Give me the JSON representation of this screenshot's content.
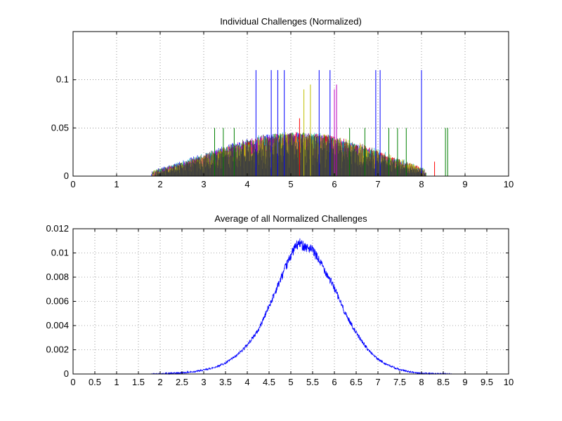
{
  "figure": {
    "background": "#ffffff"
  },
  "chart_data": [
    {
      "type": "area",
      "title": "Individual Challenges (Normalized)",
      "xlabel": "",
      "ylabel": "",
      "xlim": [
        0,
        10
      ],
      "ylim": [
        0,
        0.15
      ],
      "xticks": [
        0,
        1,
        2,
        3,
        4,
        5,
        6,
        7,
        8,
        9,
        10
      ],
      "xtick_labels": [
        "0",
        "1",
        "2",
        "3",
        "4",
        "5",
        "6",
        "7",
        "8",
        "9",
        "10"
      ],
      "yticks": [
        0,
        0.05,
        0.1
      ],
      "ytick_labels": [
        "0",
        "0.05",
        "0.1"
      ],
      "grid": true,
      "series_colors": [
        "#0000ff",
        "#008000",
        "#ff0000",
        "#00bfbf",
        "#bf00bf",
        "#bfbf00",
        "#404040"
      ],
      "envelope": {
        "x": [
          1.8,
          2.0,
          2.5,
          3.0,
          3.5,
          4.0,
          4.5,
          5.0,
          5.5,
          6.0,
          6.5,
          7.0,
          7.5,
          8.0,
          8.2
        ],
        "y": [
          0.002,
          0.006,
          0.013,
          0.021,
          0.029,
          0.037,
          0.043,
          0.046,
          0.045,
          0.042,
          0.035,
          0.026,
          0.017,
          0.008,
          0.003
        ]
      },
      "spikes": [
        {
          "x": 4.2,
          "y": 0.11,
          "color": "#0000ff"
        },
        {
          "x": 4.55,
          "y": 0.11,
          "color": "#0000ff"
        },
        {
          "x": 4.7,
          "y": 0.11,
          "color": "#0000ff"
        },
        {
          "x": 4.85,
          "y": 0.11,
          "color": "#0000ff"
        },
        {
          "x": 5.65,
          "y": 0.11,
          "color": "#0000ff"
        },
        {
          "x": 5.9,
          "y": 0.11,
          "color": "#0000ff"
        },
        {
          "x": 6.95,
          "y": 0.11,
          "color": "#0000ff"
        },
        {
          "x": 7.05,
          "y": 0.11,
          "color": "#0000ff"
        },
        {
          "x": 8.0,
          "y": 0.11,
          "color": "#0000ff"
        },
        {
          "x": 3.25,
          "y": 0.05,
          "color": "#008000"
        },
        {
          "x": 3.45,
          "y": 0.05,
          "color": "#008000"
        },
        {
          "x": 3.7,
          "y": 0.05,
          "color": "#008000"
        },
        {
          "x": 5.2,
          "y": 0.06,
          "color": "#ff0000"
        },
        {
          "x": 5.3,
          "y": 0.09,
          "color": "#bfbf00"
        },
        {
          "x": 5.45,
          "y": 0.095,
          "color": "#bfbf00"
        },
        {
          "x": 6.0,
          "y": 0.09,
          "color": "#bf00bf"
        },
        {
          "x": 6.05,
          "y": 0.095,
          "color": "#bf00bf"
        },
        {
          "x": 6.35,
          "y": 0.05,
          "color": "#008000"
        },
        {
          "x": 6.7,
          "y": 0.05,
          "color": "#008000"
        },
        {
          "x": 7.25,
          "y": 0.05,
          "color": "#008000"
        },
        {
          "x": 7.45,
          "y": 0.05,
          "color": "#008000"
        },
        {
          "x": 7.65,
          "y": 0.05,
          "color": "#008000"
        },
        {
          "x": 8.3,
          "y": 0.015,
          "color": "#ff0000"
        },
        {
          "x": 8.55,
          "y": 0.05,
          "color": "#008000"
        },
        {
          "x": 8.6,
          "y": 0.05,
          "color": "#008000"
        }
      ]
    },
    {
      "type": "line",
      "title": "Average of all Normalized Challenges",
      "xlabel": "",
      "ylabel": "",
      "xlim": [
        0,
        10
      ],
      "ylim": [
        0,
        0.012
      ],
      "xticks": [
        0,
        0.5,
        1,
        1.5,
        2,
        2.5,
        3,
        3.5,
        4,
        4.5,
        5,
        5.5,
        6,
        6.5,
        7,
        7.5,
        8,
        8.5,
        9,
        9.5,
        10
      ],
      "xtick_labels": [
        "0",
        "0.5",
        "1",
        "1.5",
        "2",
        "2.5",
        "3",
        "3.5",
        "4",
        "4.5",
        "5",
        "5.5",
        "6",
        "6.5",
        "7",
        "7.5",
        "8",
        "8.5",
        "9",
        "9.5",
        "10"
      ],
      "yticks": [
        0,
        0.002,
        0.004,
        0.006,
        0.008,
        0.01,
        0.012
      ],
      "ytick_labels": [
        "0",
        "0.002",
        "0.004",
        "0.006",
        "0.008",
        "0.01",
        "0.012"
      ],
      "grid": true,
      "color": "#0000ff",
      "x": [
        1.8,
        2.0,
        2.25,
        2.5,
        2.75,
        3.0,
        3.25,
        3.5,
        3.75,
        4.0,
        4.25,
        4.5,
        4.75,
        5.0,
        5.1,
        5.2,
        5.25,
        5.5,
        5.75,
        6.0,
        6.25,
        6.5,
        6.75,
        7.0,
        7.25,
        7.5,
        7.75,
        8.0,
        8.25,
        8.5,
        8.7
      ],
      "y": [
        0.0,
        2e-05,
        5e-05,
        0.0001,
        0.00018,
        0.00032,
        0.00055,
        0.0009,
        0.0015,
        0.0024,
        0.0036,
        0.0056,
        0.0077,
        0.0098,
        0.0105,
        0.0108,
        0.0107,
        0.0102,
        0.0088,
        0.0071,
        0.005,
        0.0034,
        0.0021,
        0.0012,
        0.0007,
        0.00035,
        0.00016,
        6e-05,
        2e-05,
        1e-05,
        0.0
      ]
    }
  ]
}
